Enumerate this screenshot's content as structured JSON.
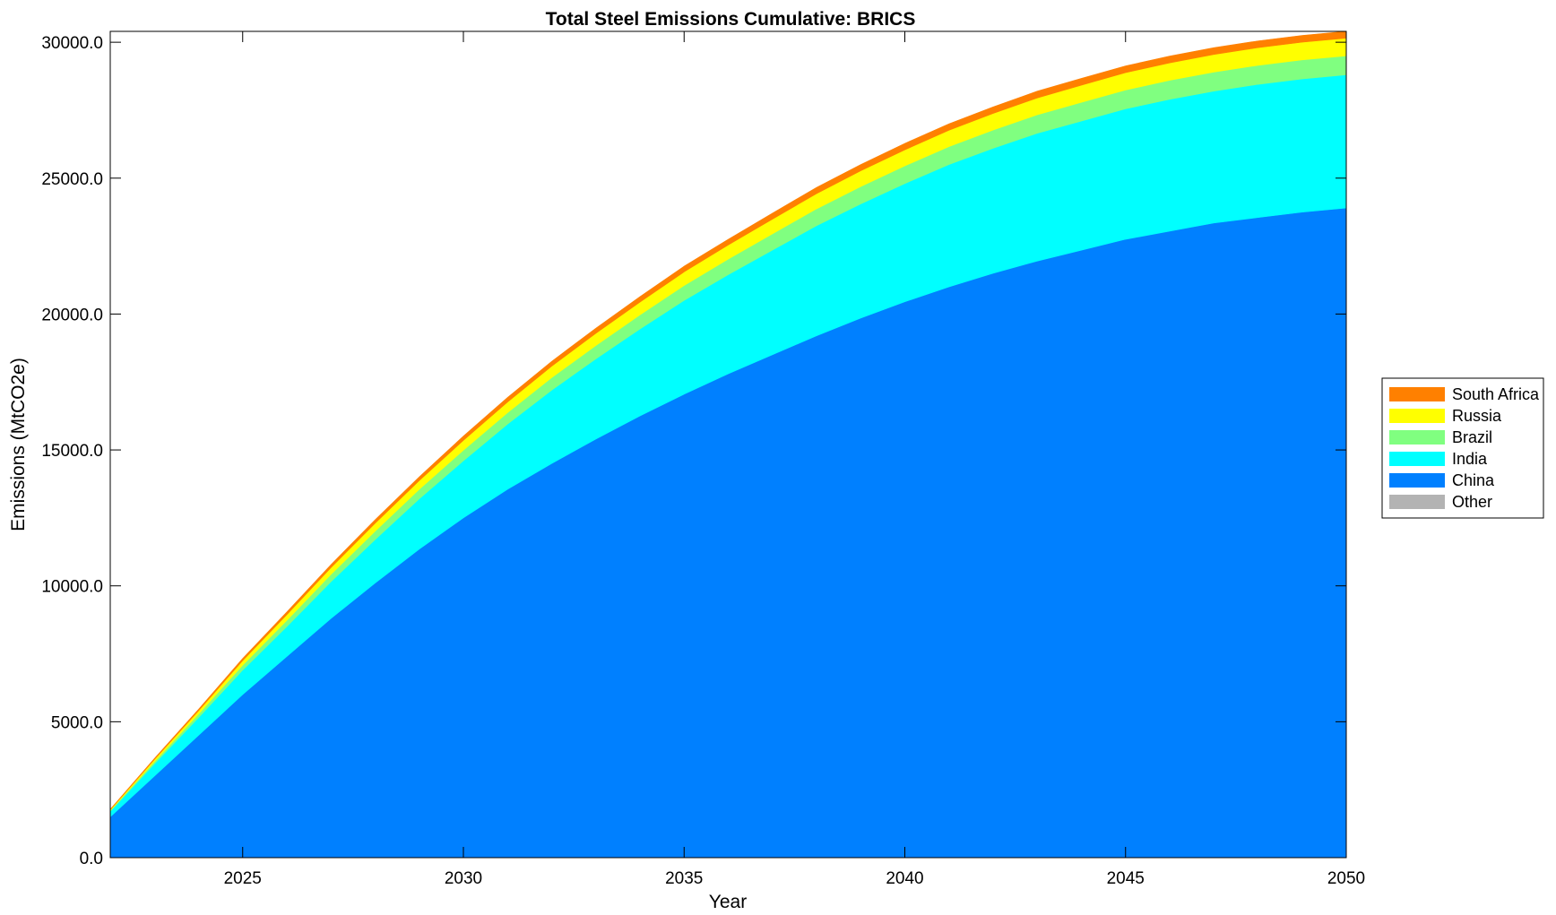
{
  "chart_data": {
    "type": "area",
    "stacked": true,
    "title": "Total Steel Emissions Cumulative: BRICS",
    "xlabel": "Year",
    "ylabel": "Emissions (MtCO2e)",
    "xlim": [
      2022,
      2050
    ],
    "ylim": [
      0,
      30400
    ],
    "xticks": [
      2025,
      2030,
      2035,
      2040,
      2045,
      2050
    ],
    "yticks": [
      0,
      5000,
      10000,
      15000,
      20000,
      25000,
      30000
    ],
    "ytick_labels": [
      "0.0",
      "5000.0",
      "10000.0",
      "15000.0",
      "20000.0",
      "25000.0",
      "30000.0"
    ],
    "grid": false,
    "legend_position": "right",
    "x": [
      2022,
      2023,
      2024,
      2025,
      2026,
      2027,
      2028,
      2029,
      2030,
      2031,
      2032,
      2033,
      2034,
      2035,
      2036,
      2037,
      2038,
      2039,
      2040,
      2041,
      2042,
      2043,
      2044,
      2045,
      2046,
      2047,
      2048,
      2049,
      2050
    ],
    "series": [
      {
        "name": "Other",
        "color": "#b3b3b3",
        "values": [
          0,
          0,
          0,
          0,
          0,
          0,
          0,
          0,
          0,
          0,
          0,
          0,
          0,
          0,
          0,
          0,
          0,
          0,
          0,
          0,
          0,
          0,
          0,
          0,
          0,
          0,
          0,
          0,
          0
        ]
      },
      {
        "name": "China",
        "color": "#0080ff",
        "values": [
          1500,
          3000,
          4500,
          6000,
          7400,
          8800,
          10100,
          11350,
          12500,
          13550,
          14500,
          15400,
          16250,
          17050,
          17800,
          18500,
          19200,
          19850,
          20450,
          21000,
          21500,
          21950,
          22350,
          22750,
          23050,
          23350,
          23550,
          23750,
          23900
        ]
      },
      {
        "name": "India",
        "color": "#00ffff",
        "values": [
          200,
          450,
          650,
          900,
          1100,
          1350,
          1600,
          1850,
          2100,
          2400,
          2700,
          2950,
          3200,
          3450,
          3650,
          3850,
          4050,
          4200,
          4350,
          4500,
          4600,
          4700,
          4750,
          4800,
          4850,
          4850,
          4900,
          4900,
          4900
        ]
      },
      {
        "name": "Brazil",
        "color": "#80ff80",
        "values": [
          30,
          80,
          130,
          180,
          230,
          270,
          310,
          350,
          390,
          420,
          460,
          490,
          520,
          550,
          570,
          600,
          620,
          640,
          650,
          660,
          670,
          680,
          690,
          690,
          700,
          700,
          700,
          700,
          700
        ]
      },
      {
        "name": "Russia",
        "color": "#ffff00",
        "values": [
          30,
          80,
          120,
          170,
          210,
          250,
          290,
          320,
          360,
          390,
          420,
          450,
          470,
          500,
          520,
          540,
          560,
          580,
          590,
          600,
          610,
          620,
          630,
          640,
          640,
          650,
          650,
          650,
          650
        ]
      },
      {
        "name": "South Africa",
        "color": "#ff8000",
        "values": [
          20,
          40,
          60,
          80,
          100,
          110,
          130,
          140,
          160,
          170,
          180,
          190,
          200,
          210,
          210,
          220,
          230,
          230,
          240,
          240,
          240,
          250,
          250,
          250,
          250,
          250,
          250,
          250,
          250
        ]
      }
    ],
    "legend_order": [
      "South Africa",
      "Russia",
      "Brazil",
      "India",
      "China",
      "Other"
    ]
  }
}
